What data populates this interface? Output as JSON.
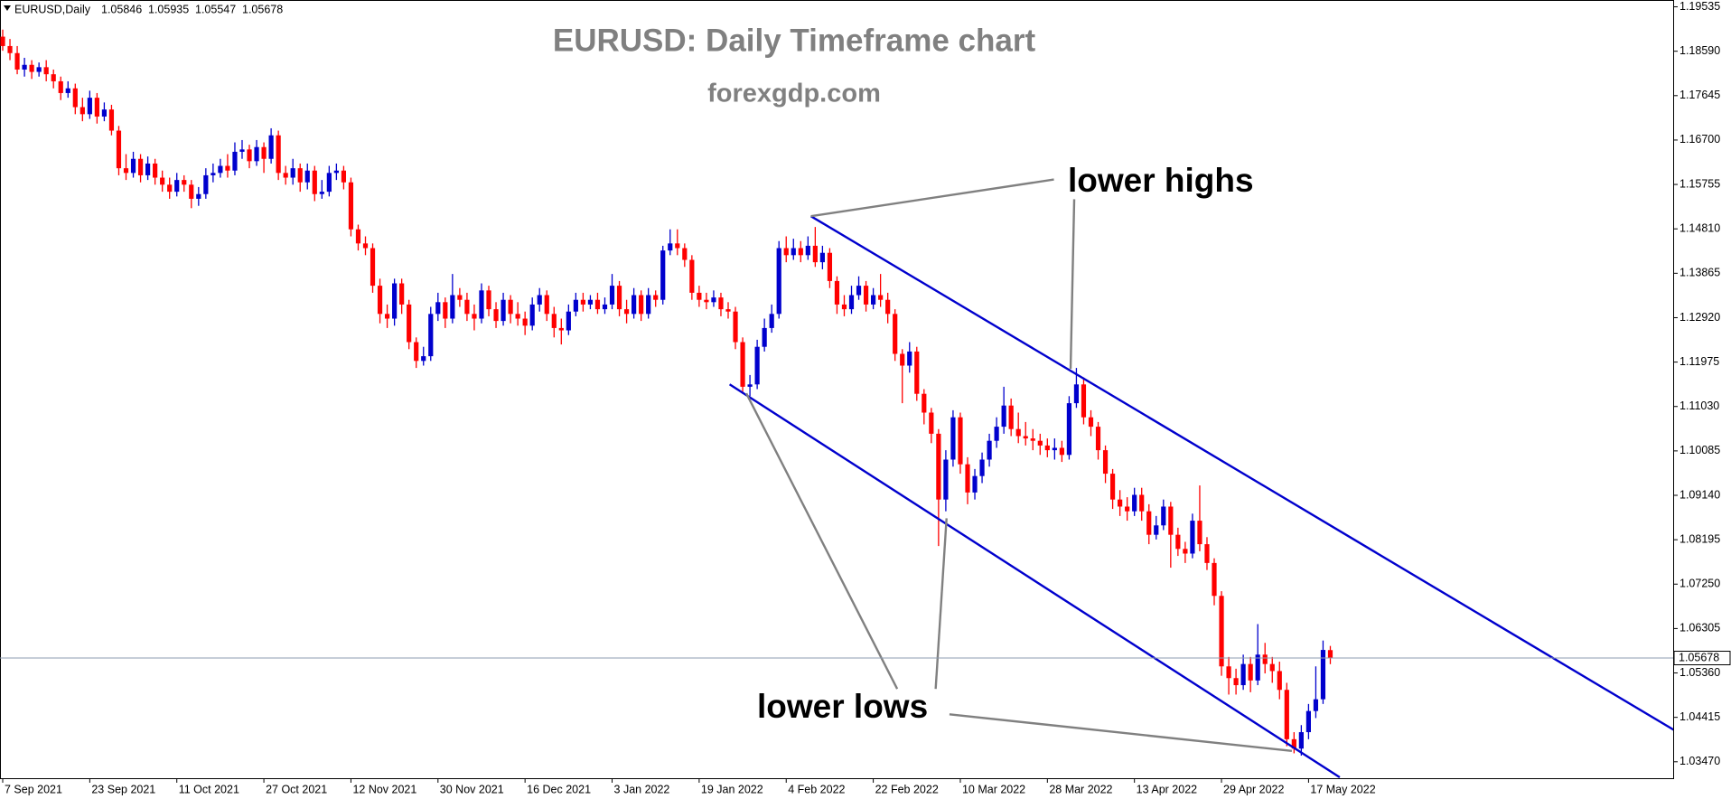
{
  "chart_data": {
    "type": "candlestick",
    "title": "EURUSD: Daily Timeframe chart",
    "subtitle": "forexgdp.com",
    "symbol": "EURUSD,Daily",
    "up_color": "#0000cd",
    "down_color": "#ff0000",
    "price_line_color": "#8c9bb0",
    "ylim": [
      1.0312,
      1.1968
    ],
    "yticks": [
      1.19535,
      {
        "value": 1.1859,
        "label": "1.18590"
      },
      1.17645,
      {
        "value": 1.167,
        "label": "1.16700"
      },
      1.15755,
      {
        "value": 1.1481,
        "label": "1.14810"
      },
      1.13865,
      {
        "value": 1.1292,
        "label": "1.12920"
      },
      1.11975,
      {
        "value": 1.1103,
        "label": "1.11030"
      },
      1.10085,
      {
        "value": 1.0914,
        "label": "1.09140"
      },
      1.08195,
      {
        "value": 1.0725,
        "label": "1.07250"
      },
      1.06305,
      {
        "value": 1.0536,
        "label": "1.05360"
      },
      1.04415,
      {
        "value": 1.0347,
        "label": "1.03470"
      }
    ],
    "categories": [
      "7 Sep 2021",
      null,
      null,
      null,
      null,
      null,
      null,
      null,
      null,
      null,
      null,
      null,
      "23 Sep 2021",
      null,
      null,
      null,
      null,
      null,
      null,
      null,
      null,
      null,
      null,
      null,
      "11 Oct 2021",
      null,
      null,
      null,
      null,
      null,
      null,
      null,
      null,
      null,
      null,
      null,
      "27 Oct 2021",
      null,
      null,
      null,
      null,
      null,
      null,
      null,
      null,
      null,
      null,
      null,
      "12 Nov 2021",
      null,
      null,
      null,
      null,
      null,
      null,
      null,
      null,
      null,
      null,
      null,
      "30 Nov 2021",
      null,
      null,
      null,
      null,
      null,
      null,
      null,
      null,
      null,
      null,
      null,
      "16 Dec 2021",
      null,
      null,
      null,
      null,
      null,
      null,
      null,
      null,
      null,
      null,
      null,
      "3 Jan 2022",
      null,
      null,
      null,
      null,
      null,
      null,
      null,
      null,
      null,
      null,
      null,
      "19 Jan 2022",
      null,
      null,
      null,
      null,
      null,
      null,
      null,
      null,
      null,
      null,
      null,
      "4 Feb 2022",
      null,
      null,
      null,
      null,
      null,
      null,
      null,
      null,
      null,
      null,
      null,
      "22 Feb 2022",
      null,
      null,
      null,
      null,
      null,
      null,
      null,
      null,
      null,
      null,
      null,
      "10 Mar 2022",
      null,
      null,
      null,
      null,
      null,
      null,
      null,
      null,
      null,
      null,
      null,
      "28 Mar 2022",
      null,
      null,
      null,
      null,
      null,
      null,
      null,
      null,
      null,
      null,
      null,
      "13 Apr 2022",
      null,
      null,
      null,
      null,
      null,
      null,
      null,
      null,
      null,
      null,
      null,
      "29 Apr 2022",
      null,
      null,
      null,
      null,
      null,
      null,
      null,
      null,
      null,
      null,
      null,
      "17 May 2022",
      null,
      null,
      null
    ],
    "candles": [
      [
        1.189,
        1.1905,
        1.186,
        1.187
      ],
      [
        1.187,
        1.1885,
        1.184,
        1.1855
      ],
      [
        1.1855,
        1.187,
        1.181,
        1.182
      ],
      [
        1.182,
        1.1845,
        1.1805,
        1.183
      ],
      [
        1.183,
        1.184,
        1.18,
        1.1815
      ],
      [
        1.1815,
        1.1835,
        1.1805,
        1.1825
      ],
      [
        1.1825,
        1.184,
        1.1795,
        1.181
      ],
      [
        1.181,
        1.182,
        1.178,
        1.1795
      ],
      [
        1.1795,
        1.1805,
        1.1755,
        1.177
      ],
      [
        1.177,
        1.1795,
        1.176,
        1.178
      ],
      [
        1.178,
        1.179,
        1.1725,
        1.174
      ],
      [
        1.174,
        1.176,
        1.171,
        1.1725
      ],
      [
        1.1725,
        1.1775,
        1.1715,
        1.176
      ],
      [
        1.176,
        1.177,
        1.1705,
        1.172
      ],
      [
        1.172,
        1.175,
        1.171,
        1.1735
      ],
      [
        1.1735,
        1.1745,
        1.168,
        1.169
      ],
      [
        1.169,
        1.17,
        1.1595,
        1.161
      ],
      [
        1.161,
        1.164,
        1.1585,
        1.16
      ],
      [
        1.16,
        1.1645,
        1.159,
        1.163
      ],
      [
        1.163,
        1.164,
        1.158,
        1.1595
      ],
      [
        1.1595,
        1.1635,
        1.1585,
        1.162
      ],
      [
        1.162,
        1.163,
        1.1575,
        1.159
      ],
      [
        1.159,
        1.1605,
        1.156,
        1.1575
      ],
      [
        1.1575,
        1.159,
        1.1545,
        1.156
      ],
      [
        1.156,
        1.16,
        1.155,
        1.1585
      ],
      [
        1.1585,
        1.1595,
        1.156,
        1.1575
      ],
      [
        1.1575,
        1.1585,
        1.1525,
        1.1545
      ],
      [
        1.1545,
        1.157,
        1.153,
        1.1555
      ],
      [
        1.1555,
        1.161,
        1.1545,
        1.1595
      ],
      [
        1.1595,
        1.162,
        1.158,
        1.16
      ],
      [
        1.16,
        1.163,
        1.159,
        1.1615
      ],
      [
        1.1615,
        1.164,
        1.159,
        1.1605
      ],
      [
        1.1605,
        1.1665,
        1.1595,
        1.1645
      ],
      [
        1.1645,
        1.167,
        1.163,
        1.165
      ],
      [
        1.165,
        1.166,
        1.161,
        1.1625
      ],
      [
        1.1625,
        1.167,
        1.1615,
        1.1655
      ],
      [
        1.1655,
        1.1665,
        1.16,
        1.163
      ],
      [
        1.163,
        1.1695,
        1.162,
        1.168
      ],
      [
        1.168,
        1.169,
        1.1585,
        1.16
      ],
      [
        1.16,
        1.1615,
        1.1575,
        1.159
      ],
      [
        1.159,
        1.163,
        1.1575,
        1.161
      ],
      [
        1.161,
        1.162,
        1.156,
        1.158
      ],
      [
        1.158,
        1.162,
        1.1565,
        1.1605
      ],
      [
        1.1605,
        1.1615,
        1.154,
        1.1555
      ],
      [
        1.1555,
        1.1585,
        1.1545,
        1.156
      ],
      [
        1.156,
        1.1615,
        1.155,
        1.16
      ],
      [
        1.16,
        1.162,
        1.1585,
        1.1605
      ],
      [
        1.1605,
        1.1615,
        1.1565,
        1.158
      ],
      [
        1.158,
        1.159,
        1.1465,
        1.148
      ],
      [
        1.148,
        1.149,
        1.1435,
        1.145
      ],
      [
        1.145,
        1.1465,
        1.1425,
        1.144
      ],
      [
        1.144,
        1.145,
        1.1345,
        1.136
      ],
      [
        1.136,
        1.1375,
        1.128,
        1.13
      ],
      [
        1.13,
        1.132,
        1.127,
        1.129
      ],
      [
        1.129,
        1.1375,
        1.1275,
        1.1365
      ],
      [
        1.1365,
        1.1375,
        1.13,
        1.132
      ],
      [
        1.132,
        1.133,
        1.1225,
        1.124
      ],
      [
        1.124,
        1.125,
        1.1185,
        1.12
      ],
      [
        1.12,
        1.123,
        1.119,
        1.121
      ],
      [
        1.121,
        1.1315,
        1.12,
        1.13
      ],
      [
        1.13,
        1.1345,
        1.1285,
        1.1325
      ],
      [
        1.1325,
        1.1335,
        1.127,
        1.129
      ],
      [
        1.129,
        1.1385,
        1.128,
        1.134
      ],
      [
        1.134,
        1.1355,
        1.1315,
        1.133
      ],
      [
        1.133,
        1.1345,
        1.1285,
        1.13
      ],
      [
        1.13,
        1.132,
        1.1265,
        1.129
      ],
      [
        1.129,
        1.1365,
        1.128,
        1.135
      ],
      [
        1.135,
        1.136,
        1.1295,
        1.131
      ],
      [
        1.131,
        1.1325,
        1.127,
        1.1285
      ],
      [
        1.1285,
        1.1345,
        1.1275,
        1.133
      ],
      [
        1.133,
        1.134,
        1.128,
        1.13
      ],
      [
        1.13,
        1.1325,
        1.1275,
        1.129
      ],
      [
        1.129,
        1.1305,
        1.1255,
        1.1275
      ],
      [
        1.1275,
        1.1335,
        1.1265,
        1.132
      ],
      [
        1.132,
        1.1355,
        1.1305,
        1.134
      ],
      [
        1.134,
        1.135,
        1.1285,
        1.13
      ],
      [
        1.13,
        1.1315,
        1.125,
        1.127
      ],
      [
        1.127,
        1.129,
        1.1235,
        1.1265
      ],
      [
        1.1265,
        1.132,
        1.1255,
        1.1305
      ],
      [
        1.1305,
        1.1345,
        1.1295,
        1.133
      ],
      [
        1.133,
        1.1345,
        1.1305,
        1.132
      ],
      [
        1.132,
        1.134,
        1.131,
        1.133
      ],
      [
        1.133,
        1.1345,
        1.13,
        1.131
      ],
      [
        1.131,
        1.1335,
        1.13,
        1.132
      ],
      [
        1.132,
        1.1385,
        1.131,
        1.136
      ],
      [
        1.136,
        1.137,
        1.1295,
        1.131
      ],
      [
        1.131,
        1.133,
        1.128,
        1.13
      ],
      [
        1.13,
        1.1355,
        1.129,
        1.134
      ],
      [
        1.134,
        1.135,
        1.1285,
        1.13
      ],
      [
        1.13,
        1.1355,
        1.129,
        1.134
      ],
      [
        1.134,
        1.135,
        1.1315,
        1.133
      ],
      [
        1.133,
        1.1445,
        1.132,
        1.1435
      ],
      [
        1.1435,
        1.148,
        1.1425,
        1.145
      ],
      [
        1.145,
        1.148,
        1.1425,
        1.144
      ],
      [
        1.144,
        1.145,
        1.14,
        1.1415
      ],
      [
        1.1415,
        1.1425,
        1.133,
        1.1345
      ],
      [
        1.1345,
        1.136,
        1.1315,
        1.133
      ],
      [
        1.133,
        1.1345,
        1.131,
        1.1325
      ],
      [
        1.1325,
        1.135,
        1.1315,
        1.1335
      ],
      [
        1.1335,
        1.1345,
        1.1295,
        1.131
      ],
      [
        1.131,
        1.1325,
        1.129,
        1.1305
      ],
      [
        1.1305,
        1.1315,
        1.1225,
        1.124
      ],
      [
        1.124,
        1.125,
        1.113,
        1.1145
      ],
      [
        1.1145,
        1.117,
        1.1125,
        1.115
      ],
      [
        1.115,
        1.1245,
        1.114,
        1.123
      ],
      [
        1.123,
        1.129,
        1.122,
        1.127
      ],
      [
        1.127,
        1.132,
        1.126,
        1.13
      ],
      [
        1.13,
        1.1455,
        1.129,
        1.144
      ],
      [
        1.144,
        1.1465,
        1.141,
        1.1425
      ],
      [
        1.1425,
        1.146,
        1.1415,
        1.144
      ],
      [
        1.144,
        1.1455,
        1.141,
        1.1425
      ],
      [
        1.1425,
        1.1465,
        1.1415,
        1.1445
      ],
      [
        1.1445,
        1.1485,
        1.14,
        1.141
      ],
      [
        1.141,
        1.1445,
        1.1395,
        1.143
      ],
      [
        1.143,
        1.144,
        1.1355,
        1.137
      ],
      [
        1.137,
        1.138,
        1.13,
        1.132
      ],
      [
        1.132,
        1.134,
        1.1295,
        1.131
      ],
      [
        1.131,
        1.136,
        1.13,
        1.134
      ],
      [
        1.134,
        1.138,
        1.133,
        1.136
      ],
      [
        1.136,
        1.137,
        1.1305,
        1.132
      ],
      [
        1.132,
        1.1355,
        1.131,
        1.134
      ],
      [
        1.134,
        1.1385,
        1.1315,
        1.133
      ],
      [
        1.133,
        1.1345,
        1.128,
        1.13
      ],
      [
        1.13,
        1.131,
        1.12,
        1.1215
      ],
      [
        1.1215,
        1.1225,
        1.111,
        1.119
      ],
      [
        1.119,
        1.124,
        1.1175,
        1.122
      ],
      [
        1.122,
        1.123,
        1.1115,
        1.113
      ],
      [
        1.113,
        1.114,
        1.1065,
        1.109
      ],
      [
        1.109,
        1.11,
        1.1025,
        1.1045
      ],
      [
        1.1045,
        1.1055,
        1.0806,
        1.0905
      ],
      [
        1.0905,
        1.101,
        1.088,
        1.099
      ],
      [
        1.099,
        1.1095,
        1.0975,
        1.108
      ],
      [
        1.108,
        1.109,
        1.096,
        1.098
      ],
      [
        1.098,
        1.0995,
        1.0895,
        1.092
      ],
      [
        1.092,
        1.097,
        1.0905,
        1.0955
      ],
      [
        1.0955,
        1.1005,
        1.094,
        1.099
      ],
      [
        1.099,
        1.1045,
        1.0975,
        1.103
      ],
      [
        1.103,
        1.108,
        1.1015,
        1.106
      ],
      [
        1.106,
        1.1145,
        1.1045,
        1.1105
      ],
      [
        1.1105,
        1.112,
        1.104,
        1.1055
      ],
      [
        1.1055,
        1.109,
        1.1025,
        1.104
      ],
      [
        1.104,
        1.107,
        1.102,
        1.1035
      ],
      [
        1.1035,
        1.1055,
        1.101,
        1.103
      ],
      [
        1.103,
        1.1045,
        1.1,
        1.102
      ],
      [
        1.102,
        1.1035,
        1.0995,
        1.101
      ],
      [
        1.101,
        1.1035,
        1.099,
        1.1015
      ],
      [
        1.1015,
        1.103,
        1.0985,
        1.1
      ],
      [
        1.1,
        1.1125,
        1.099,
        1.111
      ],
      [
        1.111,
        1.1185,
        1.11,
        1.115
      ],
      [
        1.115,
        1.1165,
        1.1065,
        1.108
      ],
      [
        1.108,
        1.1095,
        1.104,
        1.106
      ],
      [
        1.106,
        1.107,
        1.099,
        1.101
      ],
      [
        1.101,
        1.102,
        1.094,
        1.096
      ],
      [
        1.096,
        1.097,
        1.0885,
        1.0905
      ],
      [
        1.0905,
        1.0925,
        1.087,
        1.089
      ],
      [
        1.089,
        1.091,
        1.086,
        1.088
      ],
      [
        1.088,
        1.093,
        1.087,
        1.0915
      ],
      [
        1.0915,
        1.093,
        1.086,
        1.088
      ],
      [
        1.088,
        1.0895,
        1.081,
        1.083
      ],
      [
        1.083,
        1.087,
        1.082,
        1.085
      ],
      [
        1.085,
        1.0905,
        1.084,
        1.089
      ],
      [
        1.089,
        1.09,
        1.076,
        1.083
      ],
      [
        1.083,
        1.0845,
        1.0785,
        1.08
      ],
      [
        1.08,
        1.0815,
        1.077,
        1.079
      ],
      [
        1.079,
        1.0875,
        1.078,
        1.086
      ],
      [
        1.086,
        1.0935,
        1.0795,
        1.081
      ],
      [
        1.081,
        1.0825,
        1.0755,
        1.077
      ],
      [
        1.077,
        1.078,
        1.068,
        1.07
      ],
      [
        1.07,
        1.071,
        1.053,
        1.055
      ],
      [
        1.055,
        1.057,
        1.049,
        1.0525
      ],
      [
        1.0525,
        1.0545,
        1.049,
        1.051
      ],
      [
        1.051,
        1.0575,
        1.05,
        1.0555
      ],
      [
        1.0555,
        1.057,
        1.0495,
        1.052
      ],
      [
        1.052,
        1.064,
        1.051,
        1.0575
      ],
      [
        1.0575,
        1.06,
        1.0535,
        1.0555
      ],
      [
        1.0555,
        1.057,
        1.0515,
        1.054
      ],
      [
        1.054,
        1.056,
        1.048,
        1.05
      ],
      [
        1.05,
        1.0515,
        1.038,
        1.0395
      ],
      [
        1.0395,
        1.041,
        1.0365,
        1.0375
      ],
      [
        1.0375,
        1.0425,
        1.036,
        1.041
      ],
      [
        1.041,
        1.047,
        1.0395,
        1.0455
      ],
      [
        1.0455,
        1.055,
        1.044,
        1.048
      ],
      [
        1.048,
        1.0605,
        1.047,
        1.0585
      ],
      [
        1.05846,
        1.05935,
        1.05547,
        1.05678
      ]
    ],
    "lines": [
      {
        "color": "#0000cd",
        "points": [
          [
            111.4,
            1.1508
          ],
          [
            231.3,
            1.0406
          ]
        ]
      },
      {
        "color": "#0000cd",
        "points": [
          [
            100.2,
            1.115
          ],
          [
            184.3,
            1.0314
          ]
        ]
      },
      {
        "color": "#808080",
        "points": [
          [
            111.4,
            1.1508
          ],
          [
            144.9,
            1.1586
          ]
        ]
      },
      {
        "color": "#808080",
        "points": [
          [
            147.7,
            1.1544
          ],
          [
            147.2,
            1.1183
          ]
        ]
      },
      {
        "color": "#808080",
        "points": [
          [
            123.3,
            1.0502
          ],
          [
            102.5,
            1.1131
          ]
        ]
      },
      {
        "color": "#808080",
        "points": [
          [
            128.6,
            1.0502
          ],
          [
            130.1,
            1.0865
          ]
        ]
      },
      {
        "color": "#808080",
        "points": [
          [
            130.5,
            1.0448
          ],
          [
            177.7,
            1.037
          ]
        ]
      }
    ],
    "annotations": [
      "lower highs",
      "lower lows"
    ]
  }
}
